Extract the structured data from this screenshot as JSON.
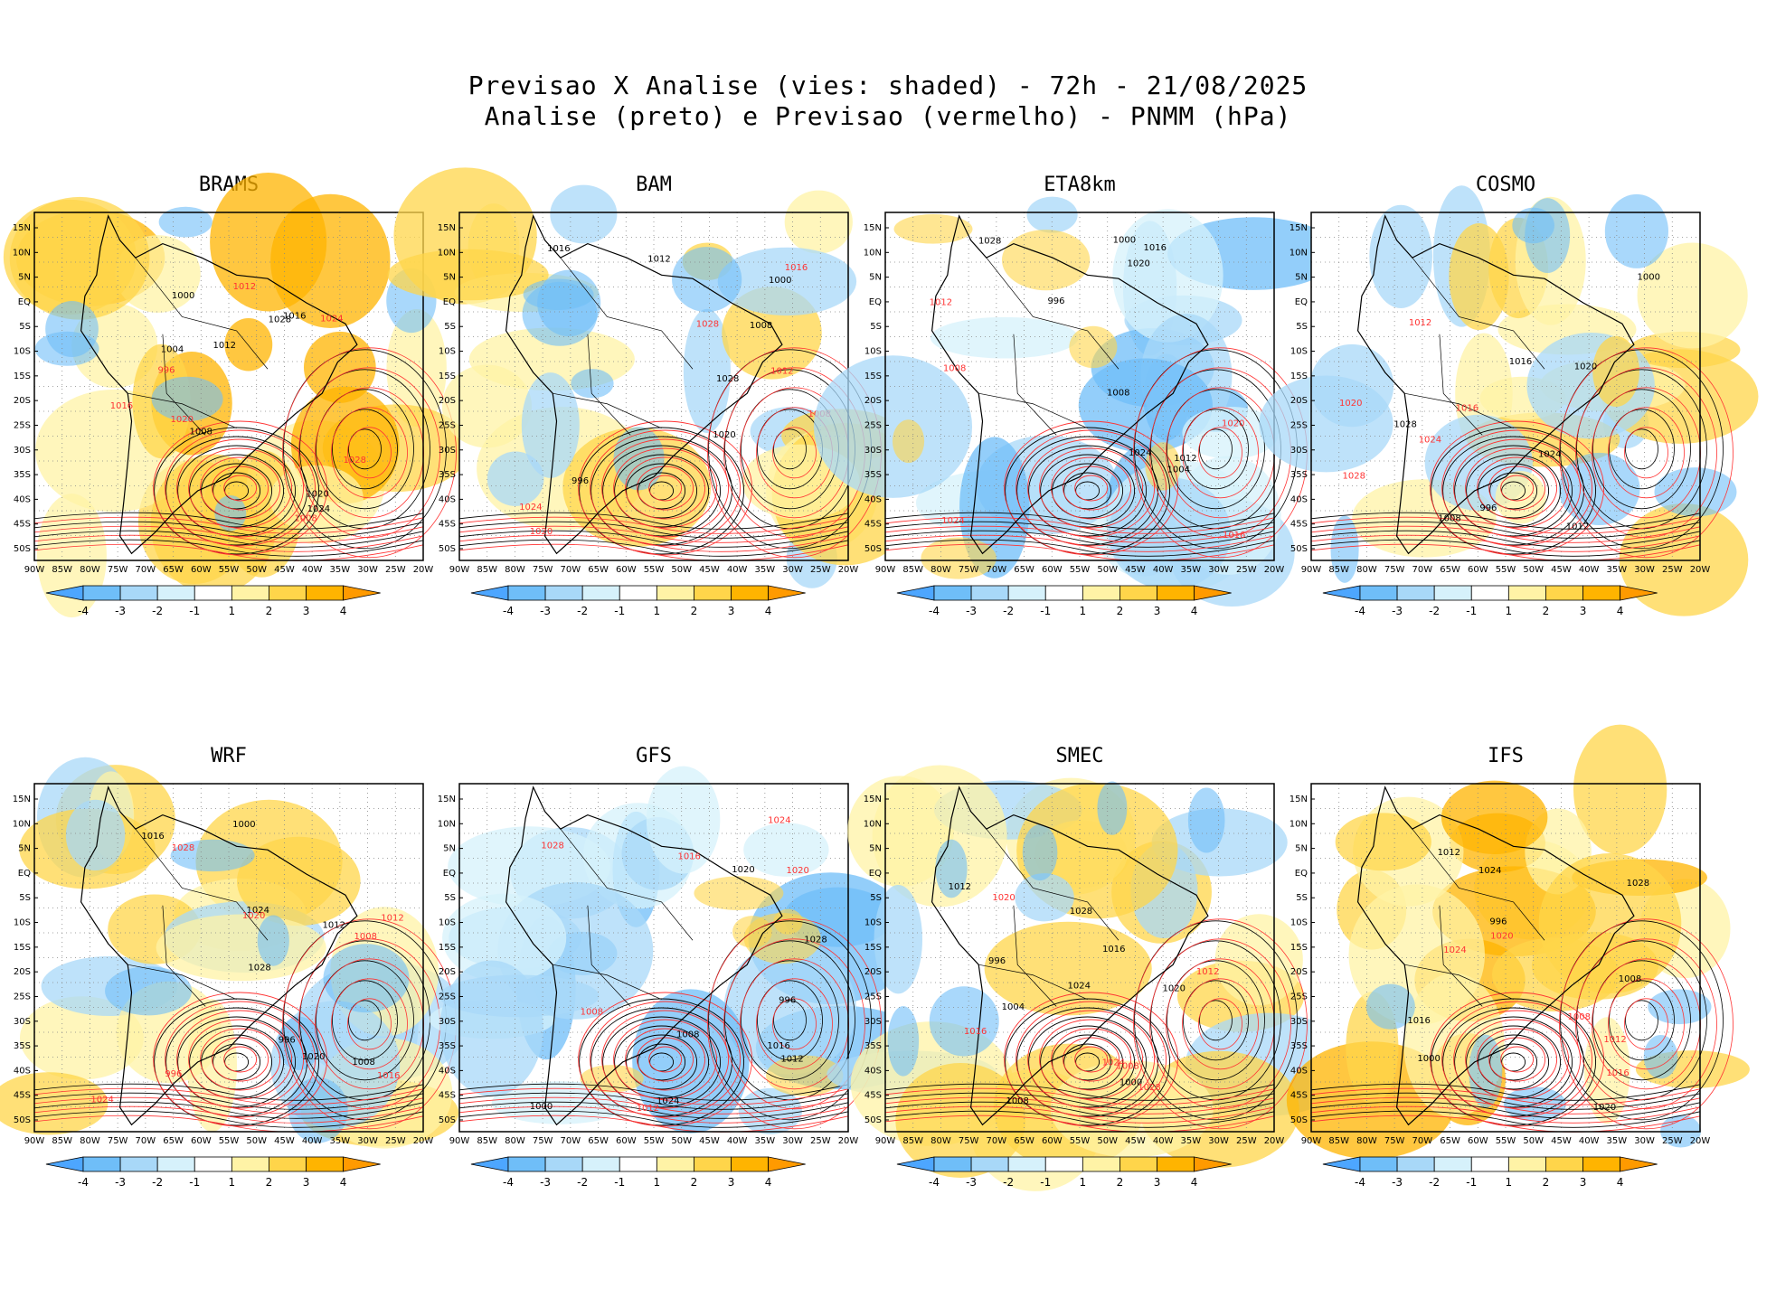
{
  "header": {
    "title_line1": "Previsao X Analise (vies: shaded) - 72h - 21/08/2025",
    "title_line2": "Analise (preto) e Previsao (vermelho) - PNMM (hPa)"
  },
  "axes": {
    "lat_labels": [
      "15N",
      "10N",
      "5N",
      "EQ",
      "5S",
      "10S",
      "15S",
      "20S",
      "25S",
      "30S",
      "35S",
      "40S",
      "45S",
      "50S"
    ],
    "lon_labels": [
      "90W",
      "85W",
      "80W",
      "75W",
      "70W",
      "65W",
      "60W",
      "55W",
      "50W",
      "45W",
      "40W",
      "35W",
      "30W",
      "25W",
      "20W"
    ]
  },
  "colorbar": {
    "labels": [
      "-4",
      "-3",
      "-2",
      "-1",
      "1",
      "2",
      "3",
      "4"
    ],
    "colors": [
      "#4da6ff",
      "#6fbef8",
      "#a8d8f8",
      "#d6f1fb",
      "#ffffff",
      "#fff3a6",
      "#ffd54a",
      "#ffb400",
      "#ff9a00"
    ]
  },
  "colors": {
    "analysis_isobar": "#000000",
    "forecast_isobar": "#ff3333",
    "coast": "#000000",
    "grid": "#888888"
  },
  "panels": [
    {
      "model": "BRAMS",
      "bias": "warm",
      "labels_black": [
        "1008",
        "1012",
        "1016",
        "1020",
        "1024",
        "1028",
        "1004",
        "1000"
      ],
      "labels_red": [
        "1012",
        "1016",
        "1020",
        "1024",
        "1028",
        "996",
        "1008"
      ]
    },
    {
      "model": "BAM",
      "bias": "mixed",
      "labels_black": [
        "1012",
        "1016",
        "1020",
        "1028",
        "996",
        "1000",
        "1008"
      ],
      "labels_red": [
        "1016",
        "1020",
        "1024",
        "1028",
        "1012",
        "1008"
      ]
    },
    {
      "model": "ETA8km",
      "bias": "cold",
      "labels_black": [
        "1008",
        "1012",
        "1016",
        "1020",
        "1024",
        "1028",
        "996",
        "1000",
        "1004"
      ],
      "labels_red": [
        "1012",
        "1016",
        "1020",
        "1008",
        "1024"
      ]
    },
    {
      "model": "COSMO",
      "bias": "mixed",
      "labels_black": [
        "1012",
        "1016",
        "1020",
        "1024",
        "1028",
        "996",
        "1000",
        "1008"
      ],
      "labels_red": [
        "1016",
        "1020",
        "1024",
        "1028",
        "1012"
      ]
    },
    {
      "model": "WRF",
      "bias": "mixed",
      "labels_black": [
        "1012",
        "1016",
        "1020",
        "1024",
        "1028",
        "996",
        "1000",
        "1008"
      ],
      "labels_red": [
        "1012",
        "1016",
        "1020",
        "1024",
        "1028",
        "1008",
        "996"
      ]
    },
    {
      "model": "GFS",
      "bias": "cold",
      "labels_black": [
        "1012",
        "1016",
        "1020",
        "1024",
        "1028",
        "996",
        "1000",
        "1008"
      ],
      "labels_red": [
        "1016",
        "1020",
        "1024",
        "1028",
        "1012",
        "1008"
      ]
    },
    {
      "model": "SMEC",
      "bias": "mixed",
      "labels_black": [
        "1012",
        "1016",
        "1020",
        "1024",
        "1028",
        "996",
        "1000",
        "1004",
        "1008"
      ],
      "labels_red": [
        "1012",
        "1016",
        "1020",
        "1024",
        "1028",
        "1008"
      ]
    },
    {
      "model": "IFS",
      "bias": "warm",
      "labels_black": [
        "1016",
        "1012",
        "1020",
        "1024",
        "1028",
        "996",
        "1000",
        "1008"
      ],
      "labels_red": [
        "1012",
        "1016",
        "1020",
        "1024",
        "1008"
      ]
    }
  ]
}
